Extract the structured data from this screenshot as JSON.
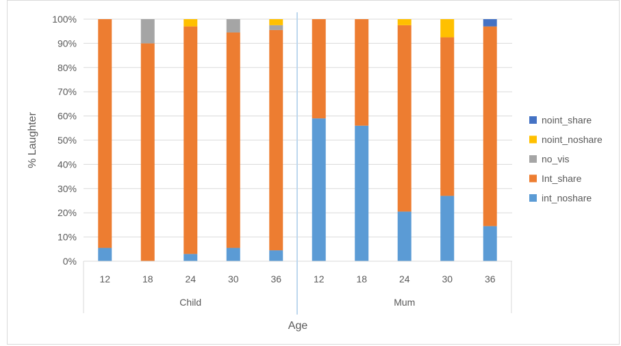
{
  "chart_data": {
    "type": "bar",
    "stacked": true,
    "percent": true,
    "title": "",
    "xlabel": "Age",
    "ylabel": "% Laughter",
    "ylim": [
      0,
      100
    ],
    "yticks": [
      "0%",
      "10%",
      "20%",
      "30%",
      "40%",
      "50%",
      "60%",
      "70%",
      "80%",
      "90%",
      "100%"
    ],
    "groups": [
      {
        "label": "Child",
        "categories": [
          "12",
          "18",
          "24",
          "30",
          "36"
        ]
      },
      {
        "label": "Mum",
        "categories": [
          "12",
          "18",
          "24",
          "30",
          "36"
        ]
      }
    ],
    "grid": true,
    "legend_position": "right",
    "series": [
      {
        "name": "int_noshare",
        "color": "#5B9BD5",
        "values": [
          5.5,
          0,
          3,
          5.5,
          4.5,
          59,
          56,
          20.5,
          27,
          14.5
        ]
      },
      {
        "name": "Int_share",
        "color": "#ED7D31",
        "values": [
          94.5,
          90,
          94,
          89,
          91,
          41,
          44,
          77,
          65.5,
          82.5
        ]
      },
      {
        "name": "no_vis",
        "color": "#A5A5A5",
        "values": [
          0,
          10,
          0,
          5.5,
          2,
          0,
          0,
          0,
          0,
          0
        ]
      },
      {
        "name": "noint_noshare",
        "color": "#FFC000",
        "values": [
          0,
          0,
          3,
          0,
          2.5,
          0,
          0,
          2.5,
          7.5,
          0
        ]
      },
      {
        "name": "noint_share",
        "color": "#4472C4",
        "values": [
          0,
          0,
          0,
          0,
          0,
          0,
          0,
          0,
          0,
          3
        ]
      }
    ]
  }
}
